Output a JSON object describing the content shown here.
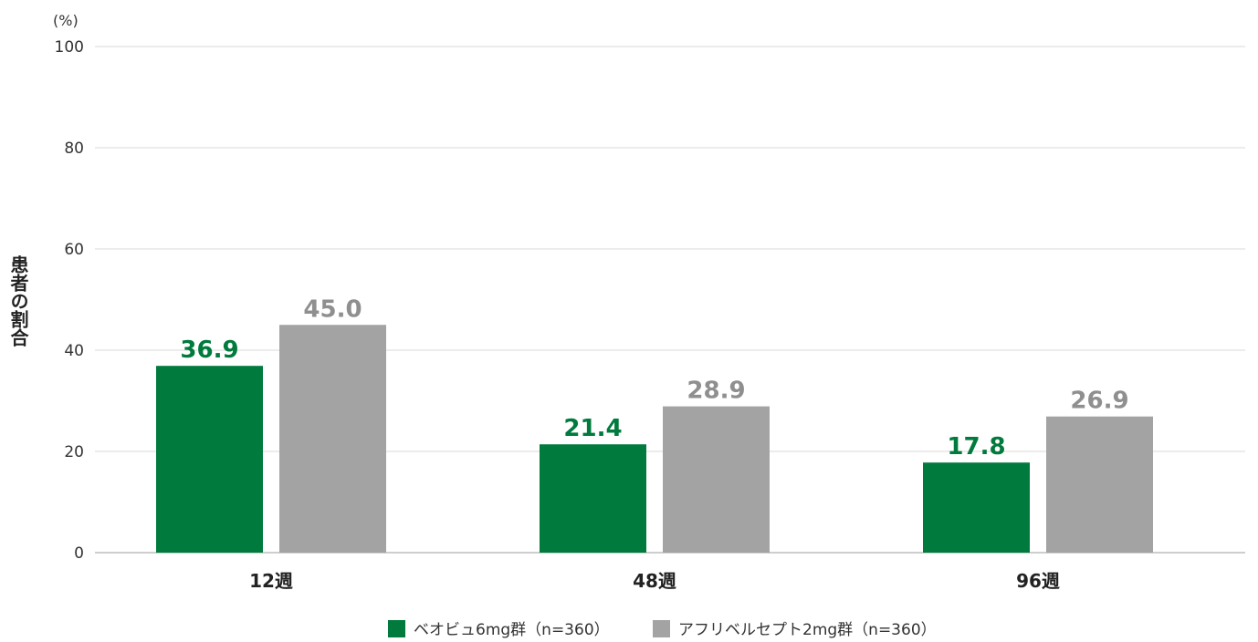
{
  "chart_data": {
    "type": "bar",
    "ylabel": "患者の割合",
    "yunit": "(%)",
    "ylim": [
      0,
      100
    ],
    "yticks": [
      0,
      20,
      40,
      60,
      80,
      100
    ],
    "grid": true,
    "legend_position": "bottom",
    "categories": [
      "12週",
      "48週",
      "96週"
    ],
    "series": [
      {
        "name": "ベオビュ6mg群（n=360）",
        "color": "#007a3d",
        "label_color": "#007a3d",
        "values": [
          36.9,
          21.4,
          17.8
        ],
        "labels": [
          "36.9",
          "21.4",
          "17.8"
        ]
      },
      {
        "name": "アフリベルセプト2mg群（n=360）",
        "color": "#a3a3a3",
        "label_color": "#8f8f8f",
        "values": [
          45.0,
          28.9,
          26.9
        ],
        "labels": [
          "45.0",
          "28.9",
          "26.9"
        ]
      }
    ]
  }
}
